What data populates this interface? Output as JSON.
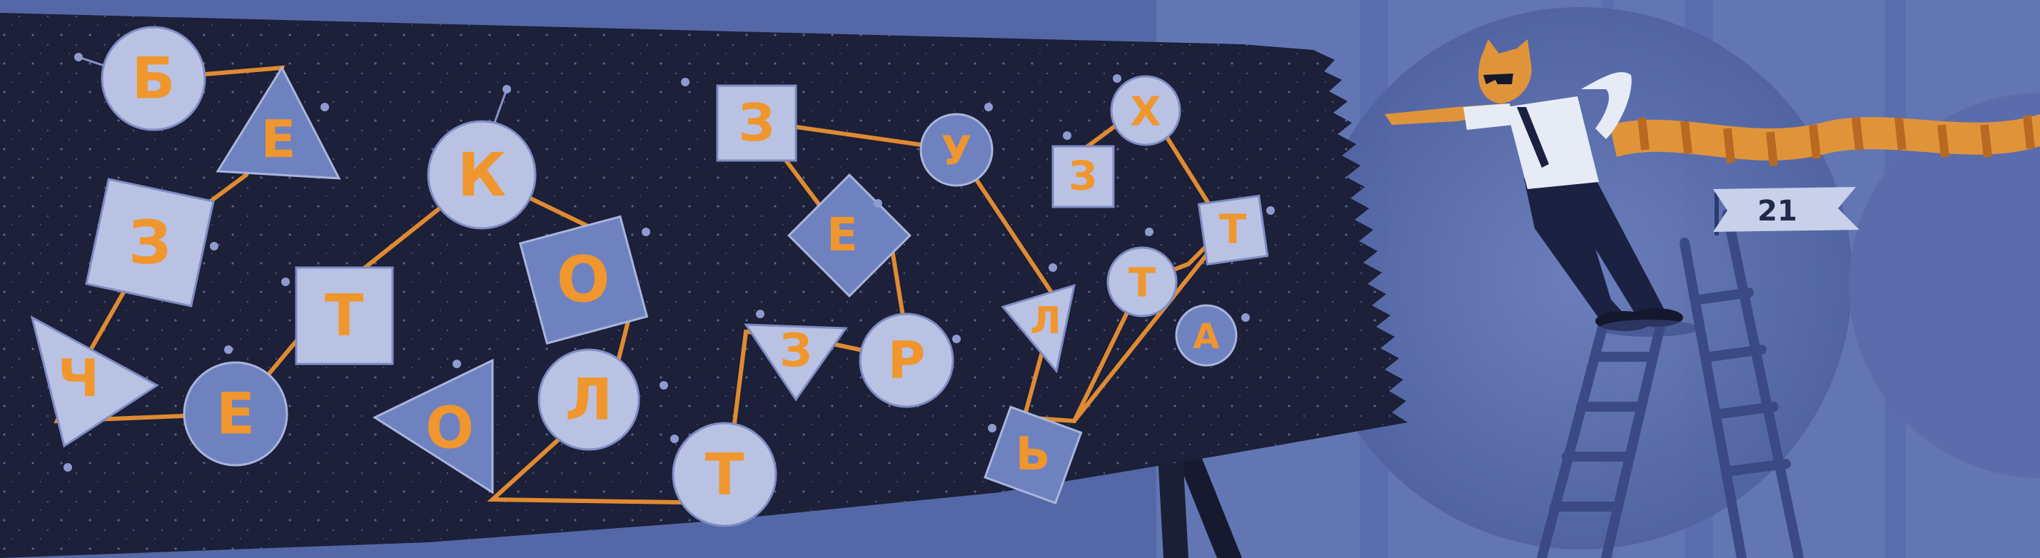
{
  "colors": {
    "background": "#5468a8",
    "board": "#1c2038",
    "node_light": "#b9c2e2",
    "node_blue": "#6f82c0",
    "letter": "#f0962e",
    "string": "#e08a32"
  },
  "board": {
    "letters": [
      "Б",
      "Е",
      "З",
      "К",
      "Т",
      "О",
      "Ч",
      "Е",
      "О",
      "Л",
      "Т",
      "З",
      "Р",
      "Е",
      "З",
      "У",
      "З",
      "Х",
      "Т",
      "Т",
      "А",
      "Ь",
      "Л"
    ]
  },
  "flag": {
    "number": "21"
  }
}
